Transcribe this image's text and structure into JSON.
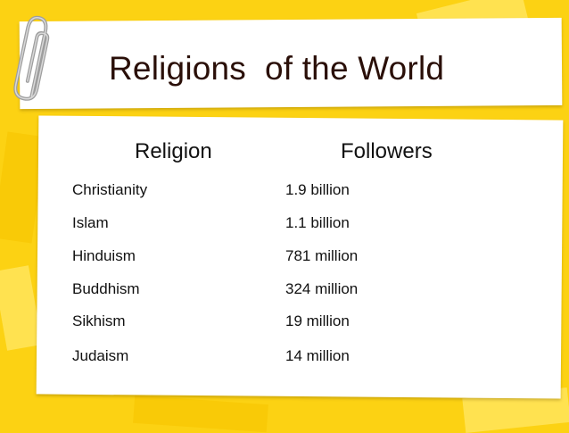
{
  "slide": {
    "title": "Religions  of the World",
    "headers": {
      "religion": "Religion",
      "followers": "Followers"
    },
    "rows": [
      {
        "religion": "Christianity",
        "followers": "1.9 billion"
      },
      {
        "religion": "Islam",
        "followers": "1.1 billion"
      },
      {
        "religion": "Hinduism",
        "followers": "781 million"
      },
      {
        "religion": "Buddhism",
        "followers": "324 million"
      },
      {
        "religion": "Sikhism",
        "followers": "19 million"
      },
      {
        "religion": "Judaism",
        "followers": "14 million"
      }
    ]
  },
  "theme": {
    "background": "#fcd213",
    "card": "#ffffff",
    "title_color": "#2a0f08",
    "clip_color": "#a9a9a9"
  },
  "icons": {
    "clip": "paperclip-icon"
  }
}
